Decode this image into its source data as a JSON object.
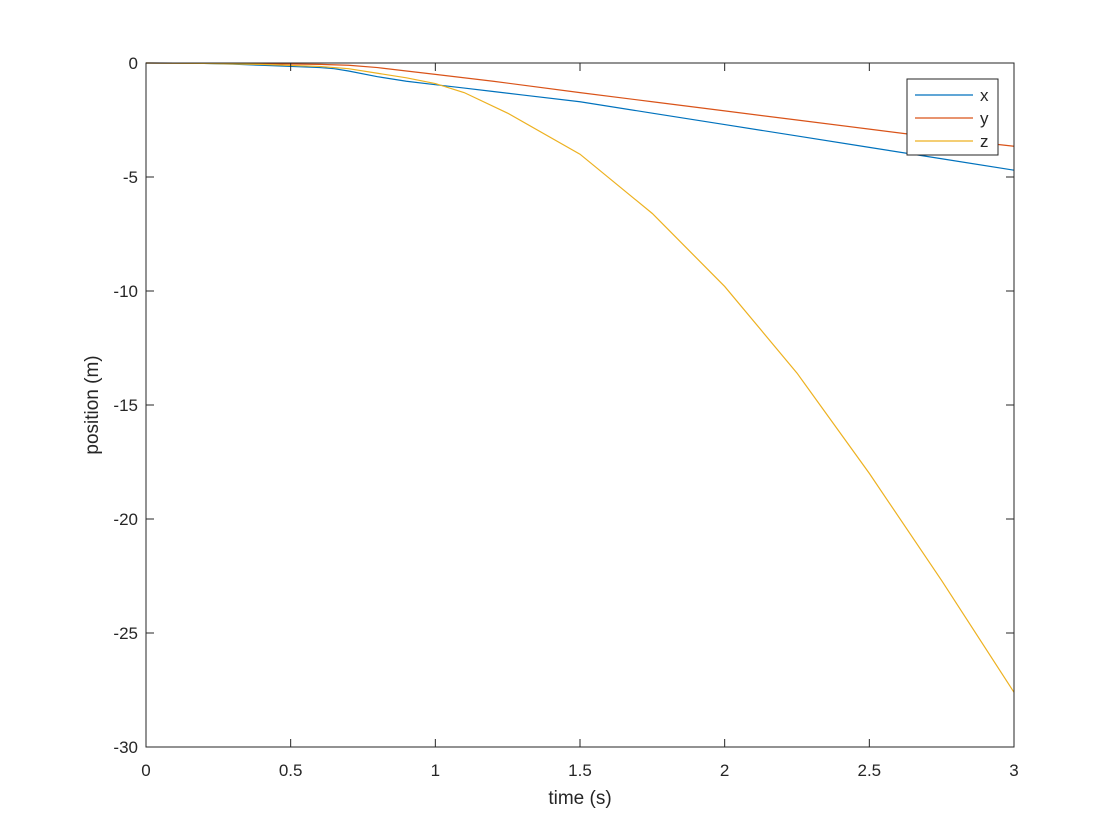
{
  "chart_data": {
    "type": "line",
    "title": "",
    "xlabel": "time (s)",
    "ylabel": "position (m)",
    "xlim": [
      0,
      3
    ],
    "ylim": [
      -30,
      0
    ],
    "xticks": [
      0,
      0.5,
      1,
      1.5,
      2,
      2.5,
      3
    ],
    "xtick_labels": [
      "0",
      "0.5",
      "1",
      "1.5",
      "2",
      "2.5",
      "3"
    ],
    "yticks": [
      -30,
      -25,
      -20,
      -15,
      -10,
      -5,
      0
    ],
    "ytick_labels": [
      "-30",
      "-25",
      "-20",
      "-15",
      "-10",
      "-5",
      "0"
    ],
    "grid": false,
    "legend_position": "top-right",
    "series": [
      {
        "name": "x",
        "color": "#0072BD",
        "x": [
          0,
          0.1,
          0.2,
          0.3,
          0.4,
          0.5,
          0.6,
          0.65,
          0.7,
          0.8,
          0.9,
          1.0,
          1.1,
          1.2,
          1.3,
          1.5,
          1.75,
          2.0,
          2.25,
          2.5,
          2.75,
          3.0
        ],
        "y": [
          0,
          -0.005,
          -0.02,
          -0.05,
          -0.1,
          -0.15,
          -0.2,
          -0.25,
          -0.35,
          -0.6,
          -0.8,
          -0.95,
          -1.1,
          -1.25,
          -1.4,
          -1.7,
          -2.2,
          -2.7,
          -3.2,
          -3.7,
          -4.2,
          -4.7
        ]
      },
      {
        "name": "y",
        "color": "#D95319",
        "x": [
          0,
          0.2,
          0.4,
          0.6,
          0.7,
          0.8,
          0.9,
          1.0,
          1.2,
          1.5,
          1.75,
          2.0,
          2.25,
          2.5,
          2.75,
          3.0
        ],
        "y": [
          0,
          -0.01,
          -0.03,
          -0.06,
          -0.1,
          -0.2,
          -0.35,
          -0.5,
          -0.8,
          -1.3,
          -1.7,
          -2.1,
          -2.5,
          -2.9,
          -3.3,
          -3.65
        ]
      },
      {
        "name": "z",
        "color": "#EDB120",
        "x": [
          0,
          0.2,
          0.4,
          0.6,
          0.7,
          0.8,
          0.9,
          1.0,
          1.1,
          1.25,
          1.5,
          1.75,
          2.0,
          2.25,
          2.5,
          2.75,
          3.0
        ],
        "y": [
          0,
          -0.02,
          -0.06,
          -0.15,
          -0.25,
          -0.45,
          -0.65,
          -0.9,
          -1.3,
          -2.2,
          -4.0,
          -6.6,
          -9.8,
          -13.6,
          -18.0,
          -22.7,
          -27.6
        ]
      }
    ]
  }
}
